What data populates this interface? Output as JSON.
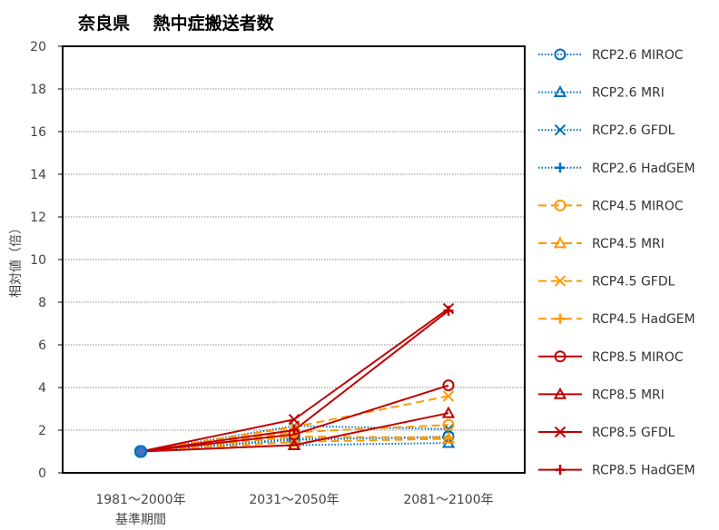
{
  "chart_data": {
    "type": "line",
    "title": "奈良県　 熱中症搬送者数",
    "ylabel": "相対値（倍）",
    "xlabel": "基準期間",
    "categories": [
      "1981～2000年",
      "2031～2050年",
      "2081～2100年"
    ],
    "ylim": [
      0,
      20
    ],
    "yticks": [
      0,
      2,
      4,
      6,
      8,
      10,
      12,
      14,
      16,
      18,
      20
    ],
    "grid": true,
    "legend": "right",
    "series": [
      {
        "name": "RCP2.6 MIROC",
        "values": [
          1,
          1.55,
          1.7
        ],
        "color": "#0070C0",
        "dash": "dot",
        "marker": "circle"
      },
      {
        "name": "RCP2.6 MRI",
        "values": [
          1,
          1.3,
          1.4
        ],
        "color": "#0070C0",
        "dash": "dot",
        "marker": "triangle"
      },
      {
        "name": "RCP2.6 GFDL",
        "values": [
          1,
          2.2,
          2.05
        ],
        "color": "#0070C0",
        "dash": "dot",
        "marker": "x"
      },
      {
        "name": "RCP2.6 HadGEM",
        "values": [
          1,
          1.6,
          1.65
        ],
        "color": "#0070C0",
        "dash": "dot",
        "marker": "plus"
      },
      {
        "name": "RCP4.5 MIROC",
        "values": [
          1,
          1.9,
          2.25
        ],
        "color": "#FF9900",
        "dash": "dash",
        "marker": "circle"
      },
      {
        "name": "RCP4.5 MRI",
        "values": [
          1,
          1.45,
          1.6
        ],
        "color": "#FF9900",
        "dash": "dash",
        "marker": "triangle"
      },
      {
        "name": "RCP4.5 GFDL",
        "values": [
          1,
          2.15,
          3.6
        ],
        "color": "#FF9900",
        "dash": "dash",
        "marker": "x"
      },
      {
        "name": "RCP4.5 HadGEM",
        "values": [
          1,
          1.7,
          1.65
        ],
        "color": "#FF9900",
        "dash": "dash",
        "marker": "plus"
      },
      {
        "name": "RCP8.5 MIROC",
        "values": [
          1,
          1.8,
          4.1
        ],
        "color": "#C00000",
        "dash": "solid",
        "marker": "circle"
      },
      {
        "name": "RCP8.5 MRI",
        "values": [
          1,
          1.3,
          2.8
        ],
        "color": "#C00000",
        "dash": "solid",
        "marker": "triangle"
      },
      {
        "name": "RCP8.5 GFDL",
        "values": [
          1,
          2.5,
          7.7
        ],
        "color": "#C00000",
        "dash": "solid",
        "marker": "x"
      },
      {
        "name": "RCP8.5 HadGEM",
        "values": [
          1,
          2.0,
          7.6
        ],
        "color": "#C00000",
        "dash": "solid",
        "marker": "plus"
      }
    ]
  }
}
